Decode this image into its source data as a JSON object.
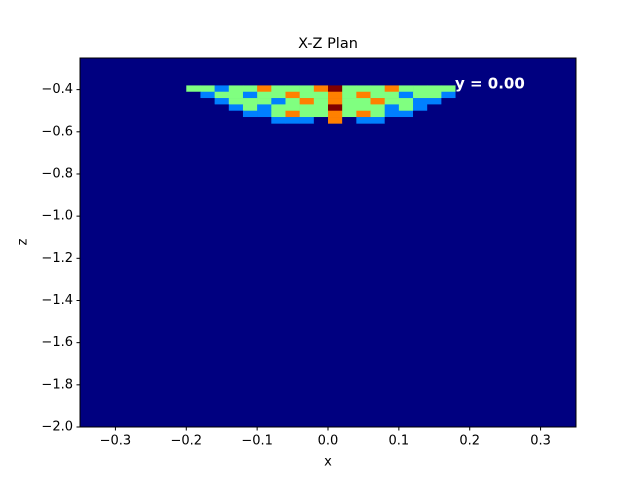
{
  "chart_data": {
    "type": "heatmap",
    "title": "X-Z Plan",
    "xlabel": "x",
    "ylabel": "z",
    "annotation": "y = 0.00",
    "colormap": "jet",
    "clim": [
      0,
      4
    ],
    "xlim": [
      -0.35,
      0.35
    ],
    "ylim": [
      -2.0,
      -0.25
    ],
    "xticks": [
      {
        "value": -0.3,
        "label": "−0.3"
      },
      {
        "value": -0.2,
        "label": "−0.2"
      },
      {
        "value": -0.1,
        "label": "−0.1"
      },
      {
        "value": 0,
        "label": "0.0"
      },
      0.1,
      0.2,
      0.3
    ],
    "yticks": [
      {
        "value": -0.4,
        "label": "−0.4"
      },
      {
        "value": -0.6,
        "label": "−0.6"
      },
      {
        "value": -0.8,
        "label": "−0.8"
      },
      {
        "value": -1.0,
        "label": "−1.0"
      },
      {
        "value": -1.2,
        "label": "−1.2"
      },
      {
        "value": -1.4,
        "label": "−1.4"
      },
      {
        "value": -1.6,
        "label": "−1.6"
      },
      {
        "value": -1.8,
        "label": "−1.8"
      },
      {
        "value": -2.0,
        "label": "−2.0"
      }
    ],
    "xbins": [
      -0.2,
      -0.18,
      -0.16,
      -0.14,
      -0.12,
      -0.1,
      -0.08,
      -0.06,
      -0.04,
      -0.02,
      0,
      0.02,
      0.04,
      0.06,
      0.08,
      0.1,
      0.12,
      0.14,
      0.16,
      0.18,
      0.2
    ],
    "ybins": [
      -0.38,
      -0.41,
      -0.44,
      -0.47,
      -0.5,
      -0.53,
      -0.56
    ],
    "values": [
      [
        2,
        2,
        1,
        2,
        2,
        3,
        2,
        2,
        2,
        3,
        4,
        2,
        2,
        2,
        3,
        2,
        2,
        2,
        2,
        0
      ],
      [
        0,
        1,
        2,
        2,
        1,
        2,
        2,
        3,
        2,
        2,
        3,
        2,
        3,
        2,
        2,
        1,
        2,
        2,
        1,
        0
      ],
      [
        0,
        0,
        1,
        2,
        2,
        2,
        1,
        2,
        3,
        2,
        3,
        2,
        2,
        3,
        2,
        2,
        1,
        1,
        0,
        0
      ],
      [
        0,
        0,
        0,
        1,
        2,
        1,
        2,
        2,
        2,
        2,
        4,
        2,
        2,
        2,
        1,
        2,
        1,
        0,
        0,
        0
      ],
      [
        0,
        0,
        0,
        0,
        1,
        1,
        2,
        3,
        2,
        2,
        3,
        2,
        3,
        2,
        1,
        1,
        0,
        0,
        0,
        0
      ],
      [
        0,
        0,
        0,
        0,
        0,
        0,
        1,
        1,
        1,
        0,
        3,
        0,
        1,
        1,
        0,
        0,
        0,
        0,
        0,
        0
      ]
    ]
  }
}
